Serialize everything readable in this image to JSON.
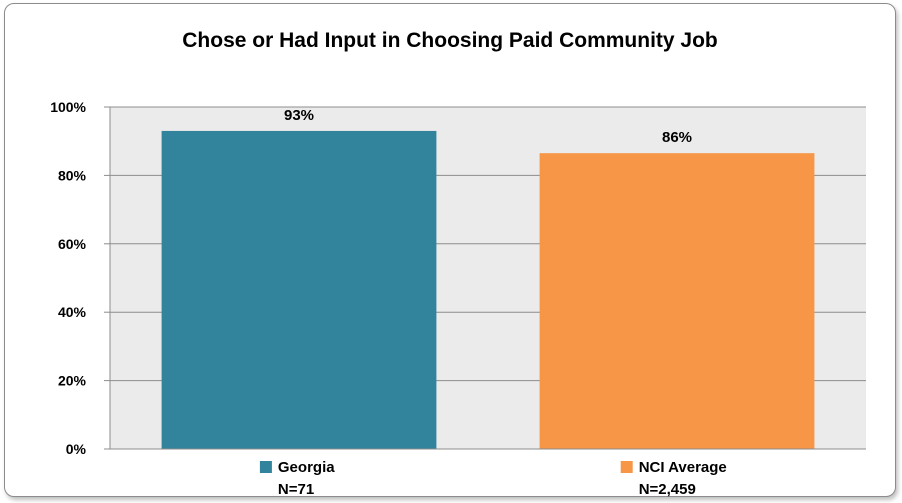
{
  "chart_data": {
    "type": "bar",
    "title": "Chose or Had Input in Choosing Paid Community Job",
    "xlabel": "",
    "ylabel": "",
    "ylim": [
      0,
      100
    ],
    "y_ticks": [
      0,
      20,
      40,
      60,
      80,
      100
    ],
    "y_tick_labels": [
      "0%",
      "20%",
      "40%",
      "60%",
      "80%",
      "100%"
    ],
    "grid": true,
    "categories": [
      "Georgia",
      "NCI Average"
    ],
    "category_sublabels": [
      "N=71",
      "N=2,459"
    ],
    "values": [
      93,
      86.5
    ],
    "data_labels": [
      "93%",
      "86%"
    ],
    "colors": [
      "#31849b",
      "#f79646"
    ],
    "plot_background": "#ebebeb",
    "legend_placement": "under-each-bar"
  }
}
